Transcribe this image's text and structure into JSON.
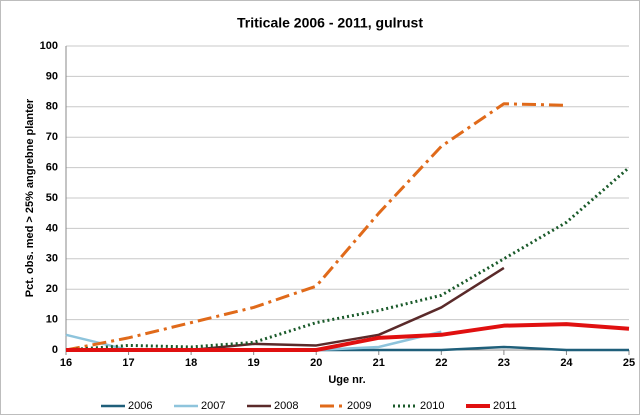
{
  "chart_data": {
    "type": "line",
    "title": "Triticale 2006 - 2011, gulrust",
    "x_label": "Uge nr.",
    "y_label": "Pct. obs. med > 25% angrebne planter",
    "x": [
      16,
      17,
      18,
      19,
      20,
      21,
      22,
      23,
      24,
      25
    ],
    "series": [
      {
        "name": "2006",
        "color": "#1f5f7a",
        "style": "solid",
        "linewidth": 2.5,
        "values": [
          0,
          0,
          0,
          0,
          0,
          0,
          0,
          1,
          0,
          0
        ]
      },
      {
        "name": "2007",
        "color": "#8ec4dc",
        "style": "solid",
        "linewidth": 2.5,
        "values": [
          5,
          0,
          0,
          0,
          0,
          1,
          6,
          null,
          null,
          null
        ]
      },
      {
        "name": "2008",
        "color": "#5a2a2a",
        "style": "solid",
        "linewidth": 2.5,
        "values": [
          0,
          0,
          0,
          2,
          1.5,
          5,
          14,
          27,
          null,
          null
        ]
      },
      {
        "name": "2009",
        "color": "#e06a1a",
        "style": "dashdot",
        "linewidth": 3,
        "values": [
          0,
          4,
          9,
          14,
          21,
          45,
          67,
          81,
          80.5,
          null
        ]
      },
      {
        "name": "2010",
        "color": "#1a5a2a",
        "style": "dotted",
        "linewidth": 3,
        "values": [
          0,
          1.5,
          1,
          2.5,
          9,
          13,
          18,
          30,
          42,
          60
        ]
      },
      {
        "name": "2011",
        "color": "#e01010",
        "style": "solid",
        "linewidth": 4,
        "values": [
          0,
          0,
          0,
          0,
          0,
          4,
          5,
          8,
          8.5,
          7
        ]
      }
    ],
    "xlim": [
      16,
      25
    ],
    "xticks": [
      16,
      17,
      18,
      19,
      20,
      21,
      22,
      23,
      24,
      25
    ],
    "ylim": [
      0,
      100
    ],
    "yticks": [
      0,
      10,
      20,
      30,
      40,
      50,
      60,
      70,
      80,
      90,
      100
    ],
    "grid": true,
    "legend": "bottom"
  }
}
